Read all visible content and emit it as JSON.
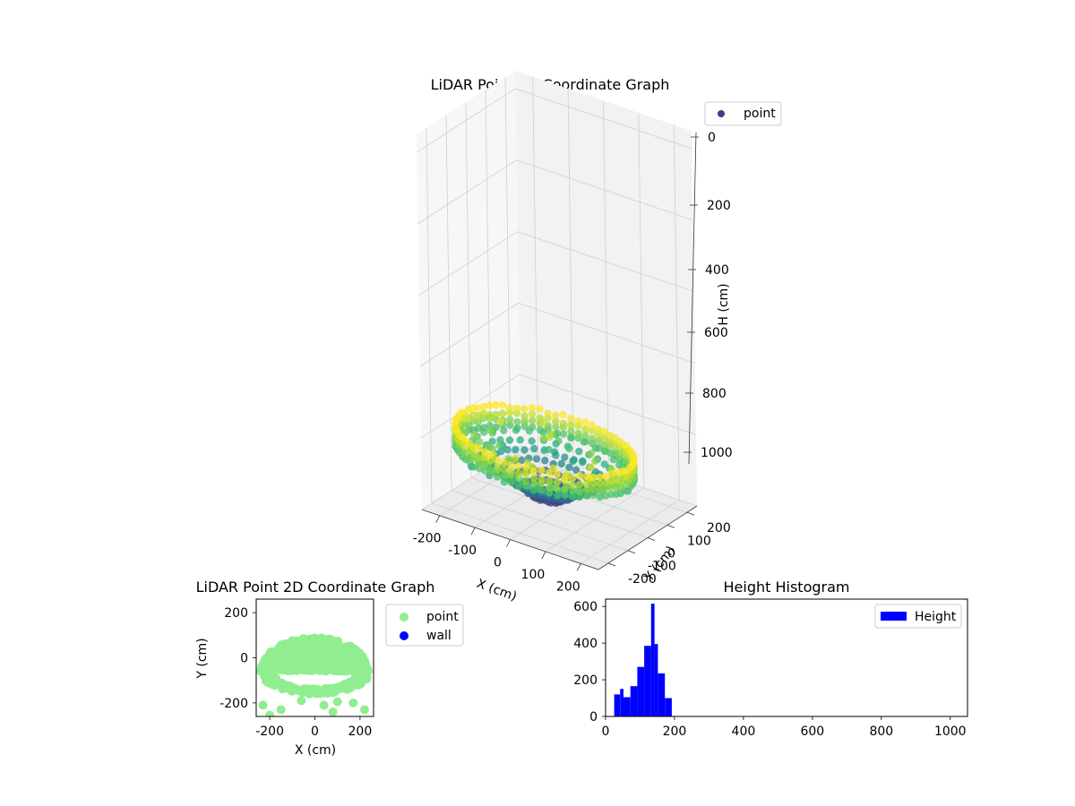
{
  "chart_data": [
    {
      "type": "scatter3d",
      "title": "LiDAR Point 3D Coordinate Graph",
      "xlabel": "X (cm)",
      "ylabel": "Y (cm)",
      "zlabel": "H (cm)",
      "xlim": [
        -250,
        250
      ],
      "ylim": [
        -250,
        250
      ],
      "zlim": [
        0,
        1050
      ],
      "zaxis_inverted": true,
      "x_ticks": [
        "-200",
        "-100",
        "0",
        "100",
        "200"
      ],
      "y_ticks": [
        "-200",
        "-100",
        "0",
        "100",
        "200"
      ],
      "z_ticks": [
        "0",
        "200",
        "400",
        "600",
        "800",
        "1000"
      ],
      "colormap": "viridis",
      "legend": [
        "point"
      ],
      "legend_color": "#443983",
      "legend_position": "upper-right",
      "grid": true,
      "point_cloud": {
        "shape": "dome",
        "radius_range_cm": [
          200,
          250
        ],
        "x_range_cm": [
          -240,
          240
        ],
        "y_range_cm": [
          -240,
          100
        ],
        "height_range_cm": [
          20,
          210
        ]
      }
    },
    {
      "type": "scatter",
      "title": "LiDAR Point 2D Coordinate Graph",
      "xlabel": "X (cm)",
      "ylabel": "Y (cm)",
      "xlim": [
        -260,
        260
      ],
      "ylim": [
        -260,
        260
      ],
      "x_ticks": [
        "-200",
        "0",
        "200"
      ],
      "y_ticks": [
        "-200",
        "0",
        "200"
      ],
      "series": [
        {
          "name": "point",
          "color": "#90ee90"
        },
        {
          "name": "wall",
          "color": "#0000ff"
        }
      ],
      "legend_position": "outside-right"
    },
    {
      "type": "bar",
      "title": "Height Histogram",
      "xlabel": "",
      "ylabel": "",
      "xlim": [
        0,
        1050
      ],
      "ylim": [
        0,
        640
      ],
      "x_ticks": [
        "0",
        "200",
        "400",
        "600",
        "800",
        "1000"
      ],
      "y_ticks": [
        "0",
        "200",
        "400",
        "600"
      ],
      "bin_edges": [
        25,
        42,
        52,
        72,
        92,
        112,
        132,
        142,
        152,
        172,
        192,
        212
      ],
      "counts": [
        120,
        150,
        105,
        165,
        270,
        385,
        615,
        395,
        235,
        100,
        0
      ],
      "series": [
        {
          "name": "Height",
          "color": "#0000ff"
        }
      ],
      "legend_position": "upper-right"
    }
  ]
}
